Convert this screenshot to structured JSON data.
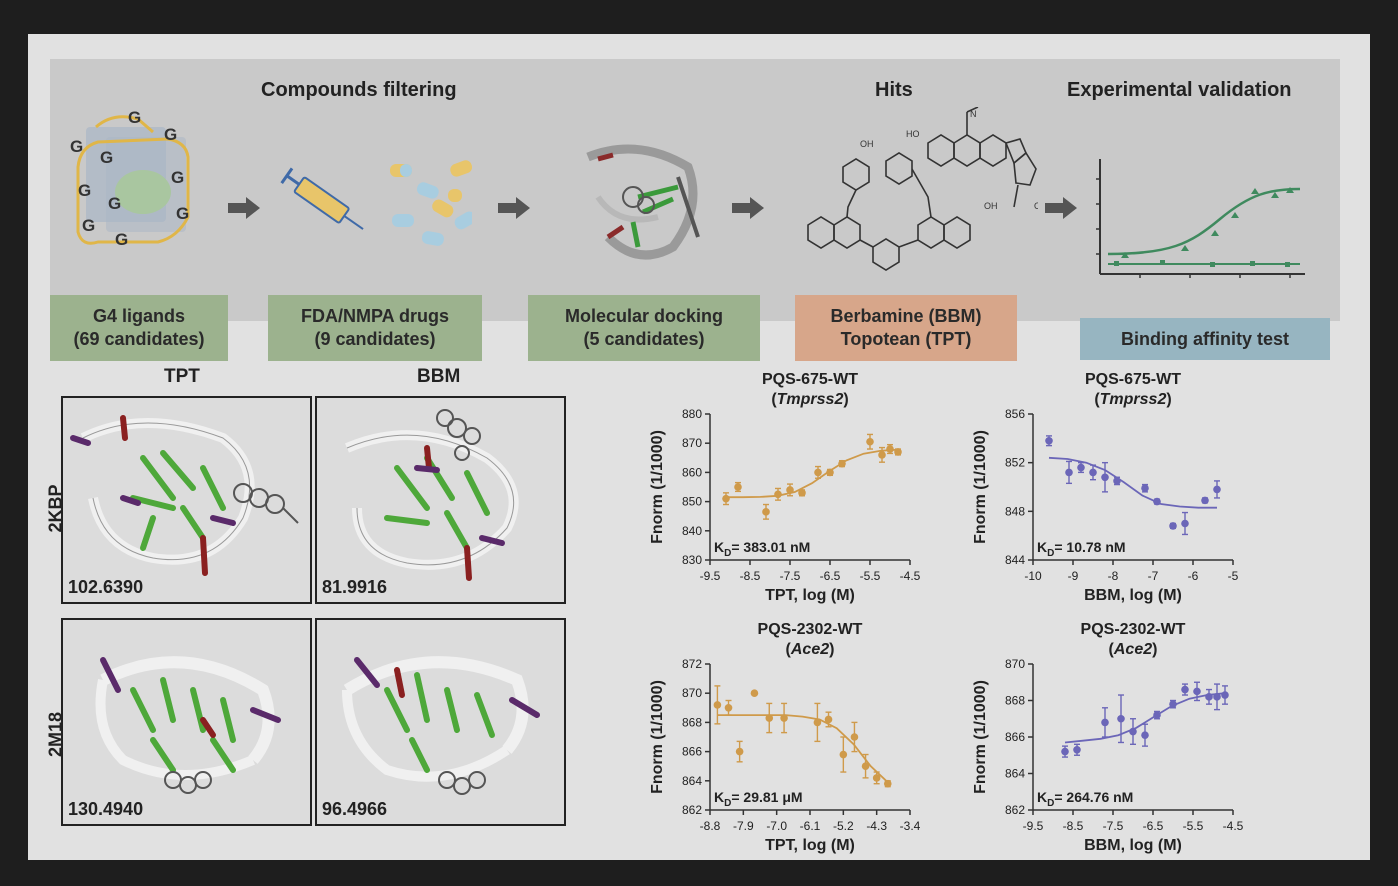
{
  "workflow": {
    "headers": {
      "filtering": "Compounds filtering",
      "hits": "Hits",
      "validation": "Experimental validation"
    },
    "boxes": {
      "g4": [
        "G4 ligands",
        "(69 candidates)"
      ],
      "fda": [
        "FDA/NMPA drugs",
        "(9 candidates)"
      ],
      "docking": [
        "Molecular docking",
        "(5 candidates)"
      ],
      "hits": [
        "Berbamine (BBM)",
        "Topotean (TPT)"
      ],
      "binding": [
        "Binding affinity test"
      ]
    },
    "g4_letter": "G",
    "mol_labels": {
      "oh1": "OH",
      "ho": "HO",
      "oh2": "OH",
      "n": "N",
      "o": "O"
    }
  },
  "docking": {
    "columns": [
      "TPT",
      "BBM"
    ],
    "rows": [
      "2KBP",
      "2M18"
    ],
    "scores": [
      "102.6390",
      "81.9916",
      "130.4940",
      "96.4966"
    ]
  },
  "colors": {
    "tpt": "#cf9a4a",
    "bbm": "#6b66b8",
    "green_curve": "#3f8a5e",
    "g4_yellow": "#e0b648"
  },
  "chart_data": [
    {
      "type": "scatter",
      "title": "PQS-675-WT",
      "subtitle": "Tmprss2",
      "xlabel": "TPT, log (M)",
      "ylabel": "Fnorm (1/1000)",
      "annotation": "K_D= 383.01 nM",
      "kd_prefix": "K",
      "kd_sub": "D",
      "kd_value": "= 383.01 nM",
      "xlim": [
        -9.5,
        -4.5
      ],
      "ylim": [
        830,
        880
      ],
      "xticks": [
        "-9.5",
        "-8.5",
        "-7.5",
        "-6.5",
        "-5.5",
        "-4.5"
      ],
      "yticks": [
        "830",
        "840",
        "850",
        "860",
        "870",
        "880"
      ],
      "x": [
        -9.1,
        -8.8,
        -8.1,
        -7.8,
        -7.5,
        -7.2,
        -6.8,
        -6.5,
        -6.2,
        -5.5,
        -5.2,
        -5.0,
        -4.8
      ],
      "y": [
        851,
        855,
        846.5,
        852.5,
        854,
        853,
        860,
        860,
        863,
        870.5,
        866,
        868,
        867
      ],
      "err": [
        2,
        1.5,
        2.5,
        2,
        2,
        1,
        2,
        1,
        1,
        2.5,
        2.5,
        1.5,
        1
      ],
      "fit_y": [
        851.5,
        851.5,
        851.6,
        852.0,
        853.3,
        856.3,
        860.4,
        864.1,
        866.4,
        867.4,
        867.8
      ],
      "color": "#cf9a4a"
    },
    {
      "type": "scatter",
      "title": "PQS-675-WT",
      "subtitle": "Tmprss2",
      "xlabel": "BBM, log (M)",
      "ylabel": "Fnorm (1/1000)",
      "annotation": "K_D= 10.78 nM",
      "kd_prefix": "K",
      "kd_sub": "D",
      "kd_value": "= 10.78 nM",
      "xlim": [
        -10,
        -5
      ],
      "ylim": [
        844,
        856
      ],
      "xticks": [
        "-10",
        "-9",
        "-8",
        "-7",
        "-6",
        "-5"
      ],
      "yticks": [
        "844",
        "848",
        "852",
        "856"
      ],
      "x": [
        -9.6,
        -9.1,
        -8.8,
        -8.5,
        -8.2,
        -7.9,
        -7.2,
        -6.9,
        -6.5,
        -6.2,
        -5.7,
        -5.4
      ],
      "y": [
        853.8,
        851.2,
        851.6,
        851.2,
        850.8,
        850.5,
        849.9,
        848.8,
        846.8,
        847,
        848.9,
        849.8
      ],
      "err": [
        0.4,
        0.9,
        0.4,
        0.6,
        1.2,
        0.3,
        0.3,
        0.2,
        0.2,
        0.9,
        0.2,
        0.7
      ],
      "fit_y": [
        852.4,
        852.3,
        852.0,
        851.4,
        850.4,
        849.3,
        848.6,
        848.4,
        848.3,
        848.3
      ],
      "color": "#6b66b8"
    },
    {
      "type": "scatter",
      "title": "PQS-2302-WT",
      "subtitle": "Ace2",
      "xlabel": "TPT, log (M)",
      "ylabel": "Fnorm (1/1000)",
      "annotation": "K_D= 29.81 μM",
      "kd_prefix": "K",
      "kd_sub": "D",
      "kd_value": "= 29.81 μM",
      "xlim": [
        -8.8,
        -3.4
      ],
      "ylim": [
        862,
        872
      ],
      "xticks": [
        "-8.8",
        "-7.9",
        "-7.0",
        "-6.1",
        "-5.2",
        "-4.3",
        "-3.4"
      ],
      "yticks": [
        "862",
        "864",
        "866",
        "868",
        "870",
        "872"
      ],
      "x": [
        -8.6,
        -8.3,
        -8.0,
        -7.6,
        -7.2,
        -6.8,
        -5.9,
        -5.6,
        -5.2,
        -4.9,
        -4.6,
        -4.3,
        -4.0
      ],
      "y": [
        869.2,
        869,
        866,
        870,
        868.3,
        868.3,
        868,
        868.2,
        865.8,
        867,
        865,
        864.2,
        863.8
      ],
      "err": [
        1.3,
        0.5,
        0.7,
        0.1,
        1.0,
        1.0,
        1.3,
        0.5,
        1.2,
        1.0,
        0.8,
        0.4,
        0.2
      ],
      "fit_y": [
        868.5,
        868.5,
        868.5,
        868.5,
        868.5,
        868.4,
        868.2,
        867.6,
        866.5,
        865.0,
        863.9
      ],
      "color": "#cf9a4a"
    },
    {
      "type": "scatter",
      "title": "PQS-2302-WT",
      "subtitle": "Ace2",
      "xlabel": "BBM, log (M)",
      "ylabel": "Fnorm (1/1000)",
      "annotation": "K_D= 264.76 nM",
      "kd_prefix": "K",
      "kd_sub": "D",
      "kd_value": "= 264.76 nM",
      "xlim": [
        -9.5,
        -4.5
      ],
      "ylim": [
        862,
        870
      ],
      "xticks": [
        "-9.5",
        "-8.5",
        "-7.5",
        "-6.5",
        "-5.5",
        "-4.5"
      ],
      "yticks": [
        "862",
        "864",
        "866",
        "868",
        "870"
      ],
      "x": [
        -8.7,
        -8.4,
        -7.7,
        -7.3,
        -7.0,
        -6.7,
        -6.4,
        -6.0,
        -5.7,
        -5.4,
        -5.1,
        -4.9,
        -4.7
      ],
      "y": [
        865.2,
        865.3,
        866.8,
        867,
        866.3,
        866.1,
        867.2,
        867.8,
        868.6,
        868.5,
        868.2,
        868.2,
        868.3
      ],
      "err": [
        0.3,
        0.3,
        0.8,
        1.3,
        0.7,
        0.6,
        0.2,
        0.2,
        0.3,
        0.5,
        0.4,
        0.7,
        0.5
      ],
      "fit_y": [
        865.7,
        865.8,
        865.9,
        866.1,
        866.5,
        867.1,
        867.7,
        868.1,
        868.3,
        868.4
      ],
      "color": "#6b66b8"
    }
  ]
}
